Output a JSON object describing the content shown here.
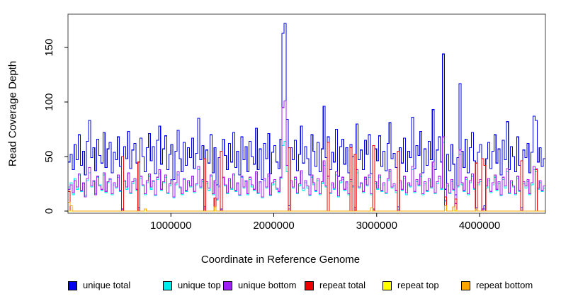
{
  "chart_data": {
    "type": "line",
    "step_interpolation": true,
    "title": "",
    "xlabel": "Coordinate in Reference Genome",
    "ylabel": "Read Coverage Depth",
    "grid": false,
    "legend_position": "bottom",
    "x_start": 0,
    "x_step": 20000,
    "x_max": 4640000,
    "xlim": [
      0,
      4640000
    ],
    "ylim": [
      0,
      179
    ],
    "xticks": [
      1000000,
      2000000,
      3000000,
      4000000
    ],
    "xtick_labels": [
      "1000000",
      "2000000",
      "3000000",
      "4000000"
    ],
    "yticks": [
      0,
      50,
      100,
      150
    ],
    "ytick_labels": [
      "0",
      "50",
      "100",
      "150"
    ],
    "series": [
      {
        "name": "unique total",
        "color": "#0000EE",
        "values": [
          45,
          52,
          38,
          61,
          47,
          70,
          42,
          55,
          33,
          64,
          83,
          49,
          58,
          37,
          66,
          51,
          44,
          72,
          40,
          57,
          63,
          35,
          54,
          47,
          68,
          41,
          2,
          59,
          48,
          73,
          39,
          56,
          62,
          44,
          3,
          67,
          50,
          36,
          58,
          71,
          46,
          59,
          34,
          65,
          78,
          43,
          57,
          69,
          38,
          52,
          61,
          29,
          55,
          74,
          48,
          36,
          63,
          42,
          58,
          49,
          67,
          39,
          53,
          85,
          47,
          60,
          4,
          56,
          44,
          70,
          35,
          58,
          24,
          49,
          2,
          66,
          51,
          38,
          62,
          45,
          72,
          40,
          55,
          33,
          68,
          47,
          59,
          36,
          64,
          50,
          43,
          76,
          38,
          57,
          29,
          62,
          48,
          71,
          34,
          54,
          60,
          45,
          39,
          66,
          163,
          172,
          84,
          5,
          58,
          47,
          65,
          37,
          52,
          78,
          44,
          59,
          48,
          33,
          70,
          55,
          41,
          63,
          36,
          57,
          96,
          49,
          68,
          38,
          54,
          45,
          75,
          32,
          59,
          66,
          43,
          58,
          35,
          61,
          50,
          3,
          80,
          47,
          56,
          38,
          65,
          52,
          70,
          34,
          2,
          57,
          46,
          69,
          41,
          55,
          37,
          62,
          81,
          48,
          53,
          40,
          4,
          58,
          44,
          67,
          36,
          55,
          49,
          86,
          39,
          60,
          51,
          73,
          35,
          57,
          42,
          64,
          47,
          93,
          38,
          56,
          68,
          45,
          144,
          20,
          52,
          37,
          61,
          43,
          15,
          49,
          117,
          55,
          40,
          66,
          35,
          58,
          72,
          46,
          3,
          54,
          61,
          2,
          5,
          48,
          63,
          39,
          55,
          70,
          44,
          57,
          33,
          65,
          47,
          82,
          38,
          59,
          50,
          36,
          68,
          42,
          3,
          56,
          49,
          62,
          35,
          54,
          87,
          83,
          45,
          58,
          41,
          48
        ]
      },
      {
        "name": "unique top",
        "color": "#00EEEE",
        "values": [
          22,
          26,
          15,
          30,
          20,
          33,
          18,
          25,
          14,
          28,
          35,
          22,
          27,
          16,
          31,
          24,
          19,
          33,
          17,
          26,
          29,
          15,
          24,
          21,
          31,
          18,
          1,
          27,
          20,
          34,
          16,
          25,
          28,
          19,
          1,
          30,
          23,
          15,
          26,
          32,
          20,
          27,
          14,
          29,
          34,
          19,
          26,
          31,
          16,
          23,
          28,
          12,
          24,
          33,
          21,
          15,
          29,
          18,
          26,
          22,
          30,
          17,
          24,
          38,
          21,
          27,
          2,
          25,
          19,
          32,
          15,
          26,
          10,
          22,
          1,
          30,
          23,
          16,
          28,
          20,
          33,
          18,
          25,
          14,
          31,
          21,
          27,
          15,
          29,
          22,
          19,
          34,
          16,
          26,
          12,
          28,
          21,
          32,
          14,
          24,
          27,
          20,
          17,
          30,
          60,
          64,
          36,
          2,
          26,
          21,
          29,
          16,
          23,
          35,
          19,
          26,
          21,
          14,
          31,
          24,
          18,
          28,
          15,
          25,
          42,
          22,
          30,
          16,
          24,
          20,
          33,
          13,
          26,
          29,
          19,
          26,
          15,
          27,
          22,
          1,
          35,
          21,
          25,
          17,
          29,
          23,
          31,
          15,
          1,
          25,
          20,
          31,
          18,
          24,
          16,
          28,
          36,
          21,
          23,
          17,
          2,
          26,
          19,
          30,
          15,
          24,
          22,
          38,
          17,
          27,
          23,
          32,
          15,
          25,
          18,
          28,
          21,
          41,
          16,
          25,
          30,
          20,
          63,
          9,
          23,
          16,
          27,
          19,
          7,
          22,
          52,
          24,
          18,
          29,
          15,
          26,
          32,
          20,
          1,
          24,
          27,
          1,
          2,
          21,
          28,
          17,
          24,
          31,
          19,
          25,
          14,
          29,
          21,
          36,
          16,
          26,
          22,
          15,
          30,
          18,
          1,
          25,
          21,
          27,
          15,
          24,
          38,
          36,
          20,
          26,
          18,
          21
        ]
      },
      {
        "name": "unique bottom",
        "color": "#A020F0",
        "values": [
          20,
          24,
          17,
          28,
          22,
          34,
          19,
          26,
          13,
          30,
          40,
          23,
          28,
          15,
          32,
          23,
          20,
          35,
          18,
          27,
          30,
          16,
          26,
          22,
          33,
          19,
          1,
          28,
          22,
          35,
          17,
          27,
          30,
          20,
          1,
          32,
          24,
          16,
          28,
          34,
          22,
          28,
          15,
          31,
          38,
          20,
          27,
          33,
          17,
          25,
          29,
          13,
          26,
          36,
          22,
          16,
          30,
          19,
          28,
          23,
          32,
          18,
          25,
          41,
          22,
          29,
          2,
          27,
          21,
          33,
          16,
          28,
          11,
          23,
          1,
          31,
          24,
          17,
          30,
          21,
          34,
          19,
          26,
          15,
          32,
          22,
          28,
          16,
          31,
          24,
          20,
          36,
          17,
          27,
          13,
          30,
          22,
          34,
          15,
          26,
          29,
          21,
          18,
          31,
          95,
          101,
          42,
          2,
          28,
          22,
          31,
          17,
          25,
          37,
          21,
          28,
          23,
          15,
          33,
          26,
          19,
          30,
          16,
          27,
          46,
          23,
          32,
          17,
          26,
          21,
          36,
          14,
          28,
          31,
          20,
          27,
          16,
          29,
          23,
          1,
          38,
          22,
          26,
          18,
          31,
          24,
          33,
          16,
          1,
          27,
          21,
          33,
          19,
          26,
          17,
          30,
          38,
          22,
          25,
          19,
          1,
          28,
          20,
          32,
          17,
          26,
          23,
          41,
          18,
          29,
          24,
          34,
          16,
          27,
          19,
          30,
          22,
          45,
          17,
          27,
          32,
          21,
          68,
          10,
          25,
          17,
          29,
          20,
          7,
          23,
          56,
          26,
          19,
          31,
          16,
          28,
          34,
          21,
          1,
          26,
          29,
          1,
          2,
          23,
          30,
          18,
          26,
          33,
          20,
          27,
          15,
          31,
          23,
          39,
          17,
          28,
          23,
          16,
          32,
          19,
          1,
          27,
          23,
          29,
          16,
          26,
          41,
          39,
          21,
          28,
          19,
          23
        ]
      },
      {
        "name": "repeat total",
        "color": "#EE0000",
        "values_default": 0,
        "values_sparse": {
          "0": 18,
          "26": 50,
          "34": 45,
          "66": 48,
          "71": 12,
          "74": 55,
          "107": 58,
          "126": 63,
          "137": 58,
          "139": 52,
          "148": 60,
          "160": 55,
          "183": 13,
          "188": 11,
          "198": 44,
          "201": 48,
          "202": 42,
          "220": 46,
          "227": 38
        }
      },
      {
        "name": "repeat top",
        "color": "#FFFF00",
        "values_default": 0,
        "values_sparse": {
          "183": 1,
          "188": 1
        }
      },
      {
        "name": "repeat bottom",
        "color": "#FFA500",
        "values_default": 0,
        "values_sparse": {
          "0": 8,
          "1": 5,
          "37": 2,
          "71": 4,
          "147": 3,
          "183": 5,
          "187": 4,
          "198": 2
        }
      }
    ]
  },
  "legend": {
    "items": [
      {
        "label": "unique total",
        "color": "#0000EE"
      },
      {
        "label": "unique top",
        "color": "#00EEEE"
      },
      {
        "label": "unique bottom",
        "color": "#A020F0"
      },
      {
        "label": "repeat total",
        "color": "#EE0000"
      },
      {
        "label": "repeat top",
        "color": "#FFFF00"
      },
      {
        "label": "repeat bottom",
        "color": "#FFA500"
      }
    ]
  }
}
